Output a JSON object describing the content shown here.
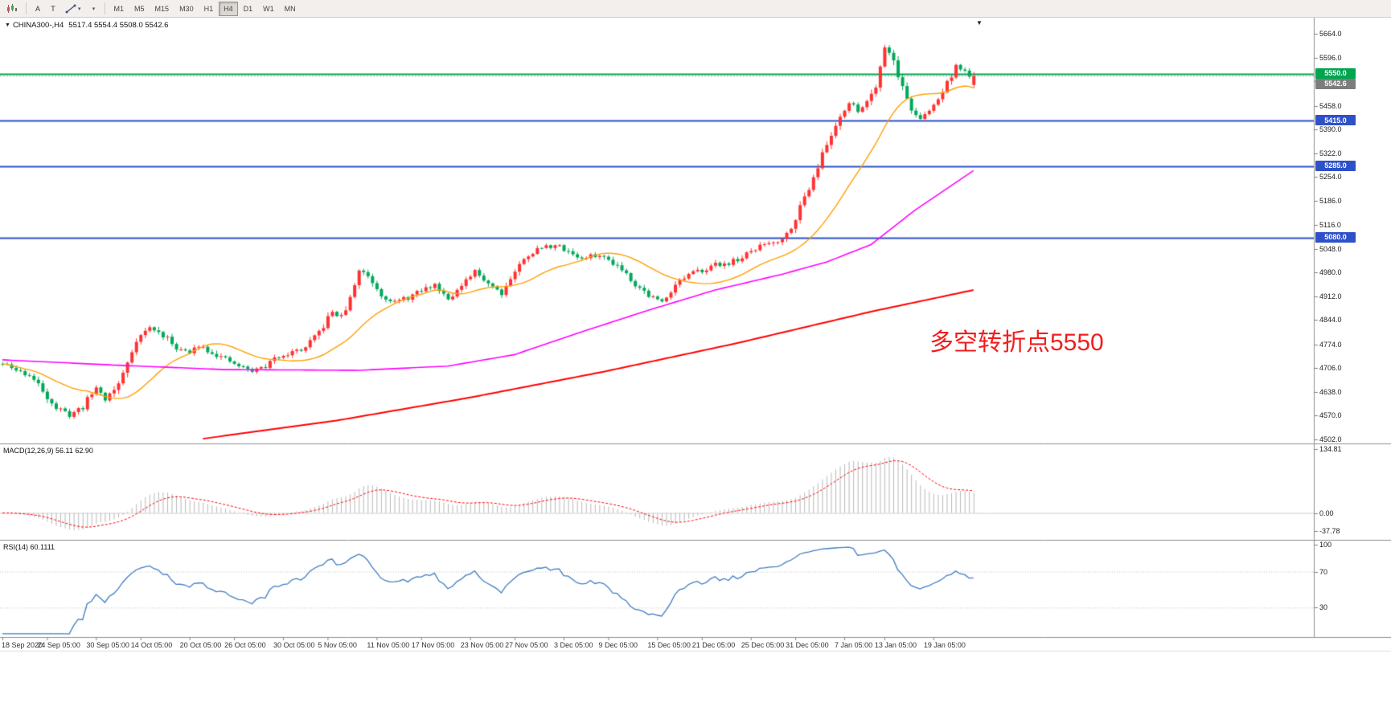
{
  "toolbar": {
    "tools": {
      "arrow_label": "A",
      "text_label": "T"
    },
    "timeframes": [
      "M1",
      "M5",
      "M15",
      "M30",
      "H1",
      "H4",
      "D1",
      "W1",
      "MN"
    ],
    "active_timeframe": "H4"
  },
  "chart_header": {
    "symbol": "CHINA300-,H4",
    "ohlc": "5517.4 5554.4 5508.0 5542.6"
  },
  "annotation": {
    "text": "多空转折点5550",
    "color": "#f21d1d"
  },
  "indicators": {
    "macd": {
      "label": "MACD(12,26,9)",
      "values": "56.11 62.90",
      "ticks": [
        "134.81",
        "0.00",
        "-37.78"
      ]
    },
    "rsi": {
      "label": "RSI(14)",
      "value": "60.1111",
      "ticks": [
        "100",
        "70",
        "30"
      ]
    }
  },
  "chart_data": {
    "type": "candlestick",
    "symbol": "CHINA300-",
    "timeframe": "H4",
    "current_ohlc": {
      "open": 5517.4,
      "high": 5554.4,
      "low": 5508.0,
      "close": 5542.6
    },
    "y_range": [
      4502,
      5664
    ],
    "y_ticks": [
      "5664.0",
      "5596.0",
      "5528.0",
      "5458.0",
      "5390.0",
      "5322.0",
      "5254.0",
      "5186.0",
      "5116.0",
      "5048.0",
      "4980.0",
      "4912.0",
      "4844.0",
      "4774.0",
      "4706.0",
      "4638.0",
      "4570.0",
      "4502.0"
    ],
    "hlines": [
      {
        "price": 5550.0,
        "label": "5550.0",
        "color": "#00a550"
      },
      {
        "price": 5415.0,
        "label": "5415.0",
        "color": "#2e50c8"
      },
      {
        "price": 5285.0,
        "label": "5285.0",
        "color": "#2e50c8"
      },
      {
        "price": 5080.0,
        "label": "5080.0",
        "color": "#2e50c8"
      }
    ],
    "current_price": {
      "value": 5542.6,
      "label": "5542.6",
      "box_color": "#7d7d7d"
    },
    "x_labels": [
      {
        "i": 0,
        "t": "18 Sep 2020"
      },
      {
        "i": 10,
        "t": "24 Sep 05:00"
      },
      {
        "i": 21,
        "t": "30 Sep 05:00"
      },
      {
        "i": 31,
        "t": "14 Oct 05:00"
      },
      {
        "i": 42,
        "t": "20 Oct 05:00"
      },
      {
        "i": 52,
        "t": "26 Oct 05:00"
      },
      {
        "i": 63,
        "t": "30 Oct 05:00"
      },
      {
        "i": 73,
        "t": "5 Nov 05:00"
      },
      {
        "i": 84,
        "t": "11 Nov 05:00"
      },
      {
        "i": 94,
        "t": "17 Nov 05:00"
      },
      {
        "i": 105,
        "t": "23 Nov 05:00"
      },
      {
        "i": 115,
        "t": "27 Nov 05:00"
      },
      {
        "i": 126,
        "t": "3 Dec 05:00"
      },
      {
        "i": 136,
        "t": "9 Dec 05:00"
      },
      {
        "i": 147,
        "t": "15 Dec 05:00"
      },
      {
        "i": 157,
        "t": "21 Dec 05:00"
      },
      {
        "i": 168,
        "t": "25 Dec 05:00"
      },
      {
        "i": 178,
        "t": "31 Dec 05:00"
      },
      {
        "i": 189,
        "t": "7 Jan 05:00"
      },
      {
        "i": 198,
        "t": "13 Jan 05:00"
      },
      {
        "i": 209,
        "t": "19 Jan 05:00"
      }
    ],
    "candle_count": 219,
    "colors": {
      "up": "#ff3232",
      "down": "#00a85a"
    },
    "price_path_anchors": [
      [
        0,
        4718
      ],
      [
        3,
        4700
      ],
      [
        6,
        4686
      ],
      [
        9,
        4642
      ],
      [
        12,
        4592
      ],
      [
        15,
        4572
      ],
      [
        18,
        4596
      ],
      [
        21,
        4652
      ],
      [
        23,
        4618
      ],
      [
        26,
        4660
      ],
      [
        28,
        4722
      ],
      [
        30,
        4790
      ],
      [
        33,
        4822
      ],
      [
        36,
        4800
      ],
      [
        39,
        4766
      ],
      [
        42,
        4748
      ],
      [
        44,
        4774
      ],
      [
        47,
        4752
      ],
      [
        50,
        4730
      ],
      [
        53,
        4712
      ],
      [
        56,
        4698
      ],
      [
        59,
        4712
      ],
      [
        62,
        4742
      ],
      [
        65,
        4752
      ],
      [
        68,
        4764
      ],
      [
        71,
        4808
      ],
      [
        74,
        4868
      ],
      [
        76,
        4852
      ],
      [
        78,
        4902
      ],
      [
        80,
        4988
      ],
      [
        82,
        4972
      ],
      [
        85,
        4918
      ],
      [
        88,
        4895
      ],
      [
        91,
        4908
      ],
      [
        94,
        4928
      ],
      [
        97,
        4945
      ],
      [
        100,
        4908
      ],
      [
        103,
        4938
      ],
      [
        106,
        4982
      ],
      [
        109,
        4952
      ],
      [
        112,
        4922
      ],
      [
        115,
        4985
      ],
      [
        118,
        5032
      ],
      [
        121,
        5052
      ],
      [
        124,
        5058
      ],
      [
        127,
        5042
      ],
      [
        130,
        5018
      ],
      [
        133,
        5030
      ],
      [
        136,
        5018
      ],
      [
        139,
        4992
      ],
      [
        142,
        4948
      ],
      [
        145,
        4915
      ],
      [
        148,
        4895
      ],
      [
        151,
        4948
      ],
      [
        154,
        4972
      ],
      [
        157,
        4988
      ],
      [
        160,
        5002
      ],
      [
        163,
        5008
      ],
      [
        166,
        5022
      ],
      [
        168,
        5040
      ],
      [
        171,
        5062
      ],
      [
        174,
        5072
      ],
      [
        176,
        5090
      ],
      [
        179,
        5165
      ],
      [
        182,
        5258
      ],
      [
        185,
        5345
      ],
      [
        188,
        5432
      ],
      [
        190,
        5465
      ],
      [
        192,
        5445
      ],
      [
        194,
        5470
      ],
      [
        196,
        5520
      ],
      [
        198,
        5630
      ],
      [
        200,
        5588
      ],
      [
        202,
        5508
      ],
      [
        204,
        5448
      ],
      [
        206,
        5418
      ],
      [
        208,
        5442
      ],
      [
        210,
        5478
      ],
      [
        212,
        5522
      ],
      [
        214,
        5572
      ],
      [
        216,
        5552
      ],
      [
        218,
        5542.6
      ]
    ],
    "mid_ma_anchors": [
      [
        0,
        4730
      ],
      [
        25,
        4715
      ],
      [
        50,
        4702
      ],
      [
        80,
        4700
      ],
      [
        100,
        4712
      ],
      [
        115,
        4745
      ],
      [
        130,
        4810
      ],
      [
        145,
        4872
      ],
      [
        160,
        4930
      ],
      [
        175,
        4975
      ],
      [
        185,
        5010
      ],
      [
        195,
        5060
      ],
      [
        205,
        5160
      ],
      [
        212,
        5220
      ],
      [
        218,
        5272
      ]
    ],
    "slow_ma_anchors": [
      [
        45,
        4504
      ],
      [
        75,
        4556
      ],
      [
        105,
        4622
      ],
      [
        135,
        4696
      ],
      [
        165,
        4778
      ],
      [
        195,
        4868
      ],
      [
        218,
        4930
      ]
    ],
    "ma_colors": {
      "fast": "#ff9f00",
      "mid": "#ff00ff",
      "slow": "#ff0000"
    },
    "fast_ma_period": 20,
    "macd_scale": {
      "min": -50,
      "max": 140
    },
    "rsi_levels": [
      70,
      30
    ],
    "seed": 11
  }
}
